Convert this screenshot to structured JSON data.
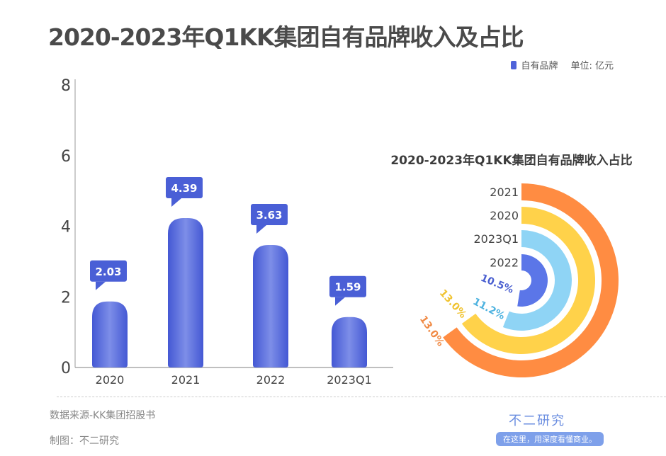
{
  "title": "2020-2023年Q1KK集团自有品牌收入及占比",
  "legend": {
    "label": "自有品牌",
    "unit": "单位: 亿元",
    "color": "#4f63d9"
  },
  "footer": {
    "source": "数据来源-KK集团招股书",
    "maker": "制图：不二研究",
    "brand": "不二研究",
    "slogan": "在这里，用深度看懂商业。"
  },
  "chart_data": [
    {
      "type": "bar",
      "title": "2020-2023年Q1KK集团自有品牌收入及占比",
      "categories": [
        "2020",
        "2021",
        "2022",
        "2023Q1"
      ],
      "series": [
        {
          "name": "自有品牌",
          "values": [
            2.03,
            4.39,
            3.63,
            1.59
          ]
        }
      ],
      "data_labels": [
        "2.03",
        "4.39",
        "3.63",
        "1.59"
      ],
      "ylim": [
        0,
        8
      ],
      "yticks": [
        "0",
        "2",
        "4",
        "6",
        "8"
      ],
      "xlabel": "",
      "ylabel": "",
      "unit": "亿元",
      "color": "#4f63d9",
      "legend_position": "top-right"
    },
    {
      "type": "radial-bar",
      "title": "2020-2023年Q1KK集团自有品牌收入占比",
      "categories": [
        "2021",
        "2020",
        "2023Q1",
        "2022"
      ],
      "values": [
        13.0,
        13.0,
        11.2,
        10.5
      ],
      "labels": [
        "13.0%",
        "13.0%",
        "11.2%",
        "10.5%"
      ],
      "colors": [
        "#ff8c42",
        "#ffd24a",
        "#8fd4f5",
        "#5b76e8"
      ],
      "label_colors": [
        "#f08a45",
        "#f0c330",
        "#4fb3e0",
        "#4a5fd0"
      ],
      "max_value": 20
    }
  ]
}
